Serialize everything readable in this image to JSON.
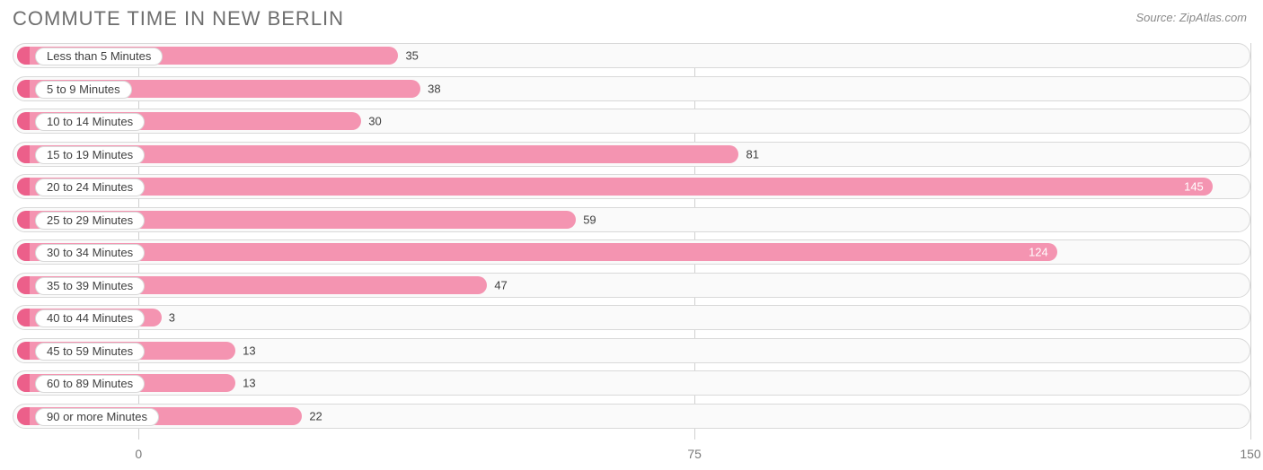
{
  "title": "COMMUTE TIME IN NEW BERLIN",
  "source": "Source: ZipAtlas.com",
  "chart": {
    "type": "bar-horizontal",
    "x_min": -17,
    "x_max": 150,
    "bar_color": "#f494b1",
    "cap_color": "#ec5f8a",
    "track_bg": "#fafafa",
    "track_border": "#d9d9d9",
    "grid_color": "#d0d0d0",
    "label_bg": "#ffffff",
    "label_text_color": "#404040",
    "value_inside_color": "#ffffff",
    "title_color": "#6e6e6e",
    "source_color": "#8a8a8a",
    "xticks": [
      {
        "value": 0,
        "label": "0"
      },
      {
        "value": 75,
        "label": "75"
      },
      {
        "value": 150,
        "label": "150"
      }
    ],
    "rows": [
      {
        "label": "Less than 5 Minutes",
        "value": 35,
        "value_inside": false
      },
      {
        "label": "5 to 9 Minutes",
        "value": 38,
        "value_inside": false
      },
      {
        "label": "10 to 14 Minutes",
        "value": 30,
        "value_inside": false
      },
      {
        "label": "15 to 19 Minutes",
        "value": 81,
        "value_inside": false
      },
      {
        "label": "20 to 24 Minutes",
        "value": 145,
        "value_inside": true
      },
      {
        "label": "25 to 29 Minutes",
        "value": 59,
        "value_inside": false
      },
      {
        "label": "30 to 34 Minutes",
        "value": 124,
        "value_inside": true
      },
      {
        "label": "35 to 39 Minutes",
        "value": 47,
        "value_inside": false
      },
      {
        "label": "40 to 44 Minutes",
        "value": 3,
        "value_inside": false
      },
      {
        "label": "45 to 59 Minutes",
        "value": 13,
        "value_inside": false
      },
      {
        "label": "60 to 89 Minutes",
        "value": 13,
        "value_inside": false
      },
      {
        "label": "90 or more Minutes",
        "value": 22,
        "value_inside": false
      }
    ]
  }
}
